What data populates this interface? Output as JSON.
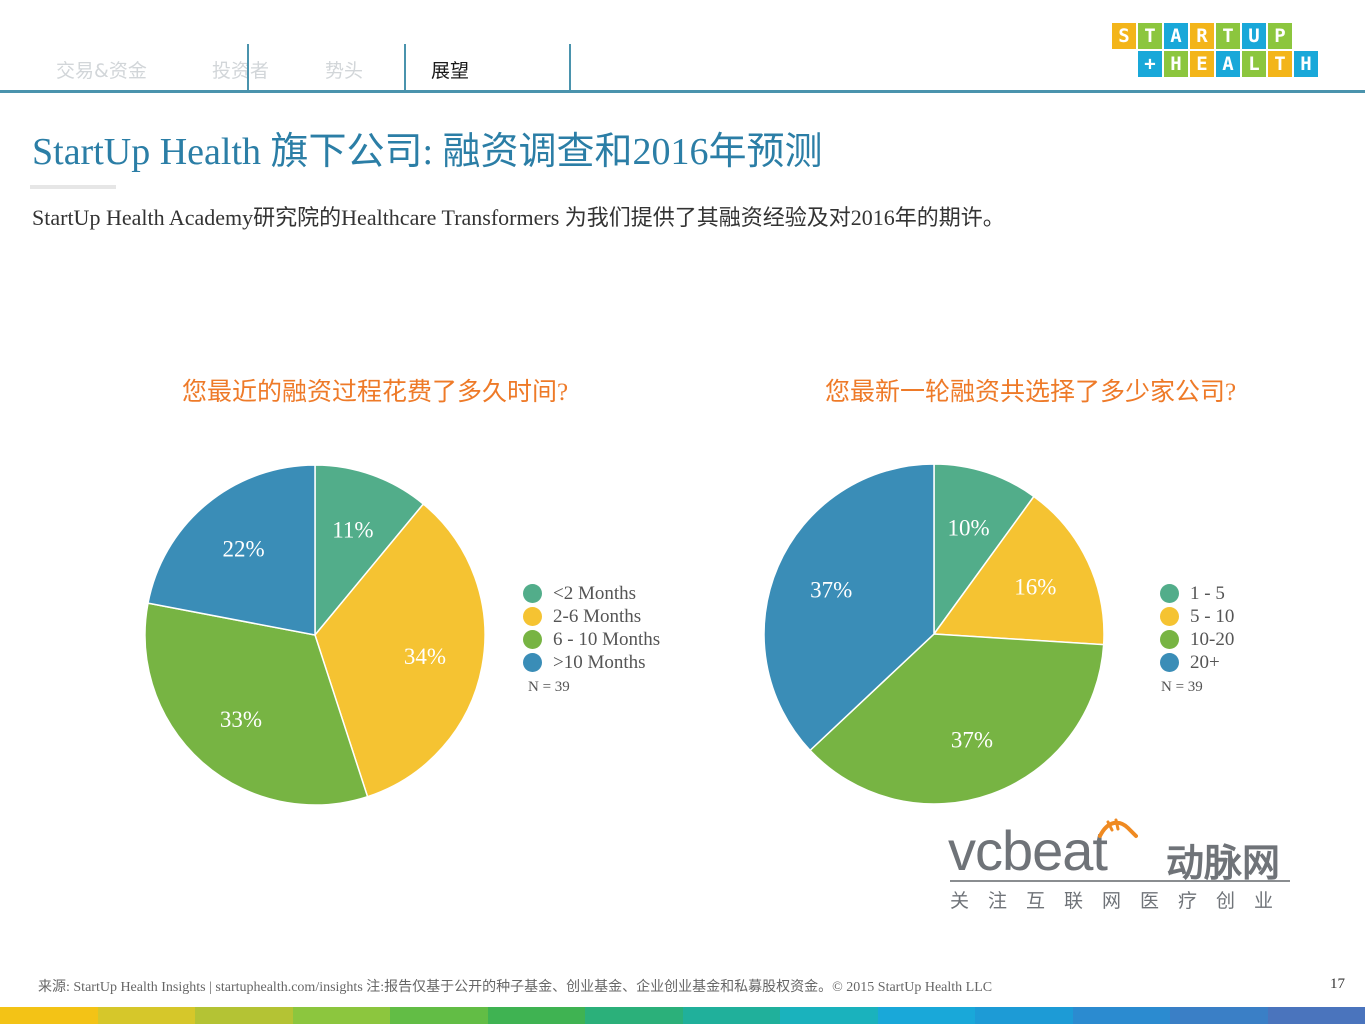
{
  "nav": {
    "tabs": [
      {
        "label": "交易&资金",
        "active": false
      },
      {
        "label": "投资者",
        "active": false
      },
      {
        "label": "势头",
        "active": false
      },
      {
        "label": "展望",
        "active": true
      }
    ]
  },
  "logo": {
    "row1": [
      "S",
      "T",
      "A",
      "R",
      "T",
      "U",
      "P"
    ],
    "row2": [
      "+",
      "H",
      "E",
      "A",
      "L",
      "T",
      "H"
    ],
    "row1_colors": [
      "#f3b51a",
      "#8cc63e",
      "#19a8d9",
      "#f3b51a",
      "#8cc63e",
      "#19a8d9",
      "#8cc63e"
    ],
    "row2_colors": [
      "#19a8d9",
      "#8cc63e",
      "#f3b51a",
      "#19a8d9",
      "#8cc63e",
      "#f3b51a",
      "#19a8d9"
    ]
  },
  "header": {
    "title": "StartUp Health 旗下公司: 融资调查和2016年预测",
    "subtitle": "StartUp Health Academy研究院的Healthcare Transformers 为我们提供了其融资经验及对2016年的期许。"
  },
  "colors": {
    "teal": "#52ad8a",
    "yellow": "#f5c332",
    "green": "#77b443",
    "blue": "#3a8db7",
    "question": "#ee7a28",
    "title": "#2b7ea6"
  },
  "chart_data": [
    {
      "type": "pie",
      "title": "您最近的融资过程花费了多久时间?",
      "categories": [
        "<2 Months",
        "2-6 Months",
        "6 - 10 Months",
        ">10 Months"
      ],
      "values": [
        11,
        34,
        33,
        22
      ],
      "labels": [
        "11%",
        "34%",
        "33%",
        "22%"
      ],
      "colors": [
        "#52ad8a",
        "#f5c332",
        "#77b443",
        "#3a8db7"
      ],
      "note": "N = 39",
      "legend": "right"
    },
    {
      "type": "pie",
      "title": "您最新一轮融资共选择了多少家公司?",
      "categories": [
        "1 - 5",
        "5 - 10",
        "10-20",
        "20+"
      ],
      "values": [
        10,
        16,
        37,
        37
      ],
      "labels": [
        "10%",
        "16%",
        "37%",
        "37%"
      ],
      "colors": [
        "#52ad8a",
        "#f5c332",
        "#77b443",
        "#3a8db7"
      ],
      "note": "N = 39",
      "legend": "right"
    }
  ],
  "watermark": {
    "brand": "vcbeat",
    "name_cn": "动脉网",
    "slogan": "关注互联网医疗创业"
  },
  "footer": {
    "source": "来源: StartUp Health Insights | startuphealth.com/insights 注:报告仅基于公开的种子基金、创业基金、企业创业基金和私募股权资金。© 2015 StartUp Health LLC",
    "page": "17"
  },
  "stripe_colors": [
    "#f3c316",
    "#d6c72a",
    "#b4c334",
    "#8cc63e",
    "#62bd45",
    "#3fb352",
    "#2bb07a",
    "#20b09b",
    "#1ab2bd",
    "#19a8d9",
    "#1d9bd6",
    "#2b8bd0",
    "#3a7fc6",
    "#4a74bd"
  ]
}
